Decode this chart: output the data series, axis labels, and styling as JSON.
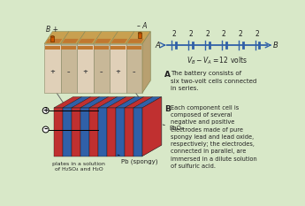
{
  "bg_color": "#d8e8c8",
  "text_A_label": "A",
  "text_A_body": "The battery consists of\nsix two-volt cells connected\nin series.",
  "text_B_label": "B",
  "text_B_body": "Each component cell is\ncomposed of several\nnegative and positive\nelectrodes made of pure\nspongy lead and lead oxide,\nrespectively; the electrodes,\nconnected in parallel, are\nimmersed in a dilute solution\nof sulfuric acid.",
  "label_A_circ": "A",
  "label_B_circ": "B",
  "label_Bplus": "B +",
  "label_minusA": "– A",
  "cell_voltage": "2",
  "label_PbO2": "PbO₂",
  "label_Pb": "Pb (spongy)",
  "label_solution": "plates in a solution\nof H₂SO₄ and H₂O",
  "vb_va": "V₆ – V₄ = 12 volts",
  "dark_text": "#333333",
  "blue_color": "#3060a8",
  "red_color": "#c03030",
  "batt_top": "#c8a050",
  "batt_face_light": "#e0d0b8",
  "batt_face_dark": "#c8b898",
  "batt_side": "#b8a070",
  "batt_stripe": "#c07830",
  "terminal_color": "#cc5500",
  "cell_line_color": "#3060a8",
  "connector_color": "#666666"
}
